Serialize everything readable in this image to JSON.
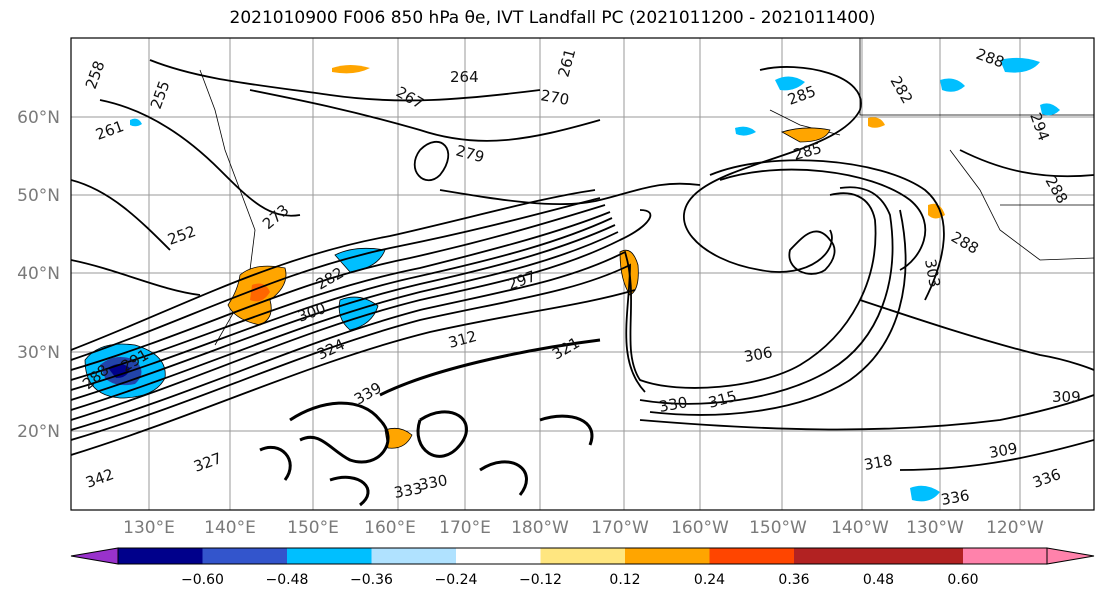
{
  "title": "2021010900 F006 850 hPa θe, IVT Landfall PC (2021011200 - 2021011400)",
  "lat_labels": [
    "60°N",
    "50°N",
    "40°N",
    "30°N",
    "20°N"
  ],
  "lon_labels": [
    "130°E",
    "140°E",
    "150°E",
    "160°E",
    "170°E",
    "180°W",
    "170°W",
    "160°W",
    "150°W",
    "140°W",
    "130°W",
    "120°W"
  ],
  "contour_labels": [
    "258",
    "255",
    "261",
    "264",
    "267",
    "270",
    "261",
    "279",
    "285",
    "288",
    "288",
    "282",
    "294",
    "285",
    "273",
    "252",
    "288",
    "282",
    "297",
    "303",
    "300",
    "324",
    "291",
    "288",
    "312",
    "321",
    "306",
    "330",
    "315",
    "309",
    "309",
    "336",
    "318",
    "339",
    "333",
    "327",
    "330",
    "336",
    "342"
  ],
  "colorbar": {
    "ticks": [
      "−0.60",
      "−0.48",
      "−0.36",
      "−0.24",
      "−0.12",
      "0.12",
      "0.24",
      "0.36",
      "0.48",
      "0.60"
    ],
    "colors": [
      "#9932cc",
      "#00008b",
      "#3355cc",
      "#00bfff",
      "#b0e2ff",
      "#ffffff",
      "#ffe680",
      "#ffa500",
      "#ff4500",
      "#b22222",
      "#ff82ab"
    ]
  },
  "fill_colors": {
    "blue": "#00bfff",
    "darkblue": "#2244aa",
    "orange": "#ffa500",
    "darkorange": "#ff6600"
  }
}
